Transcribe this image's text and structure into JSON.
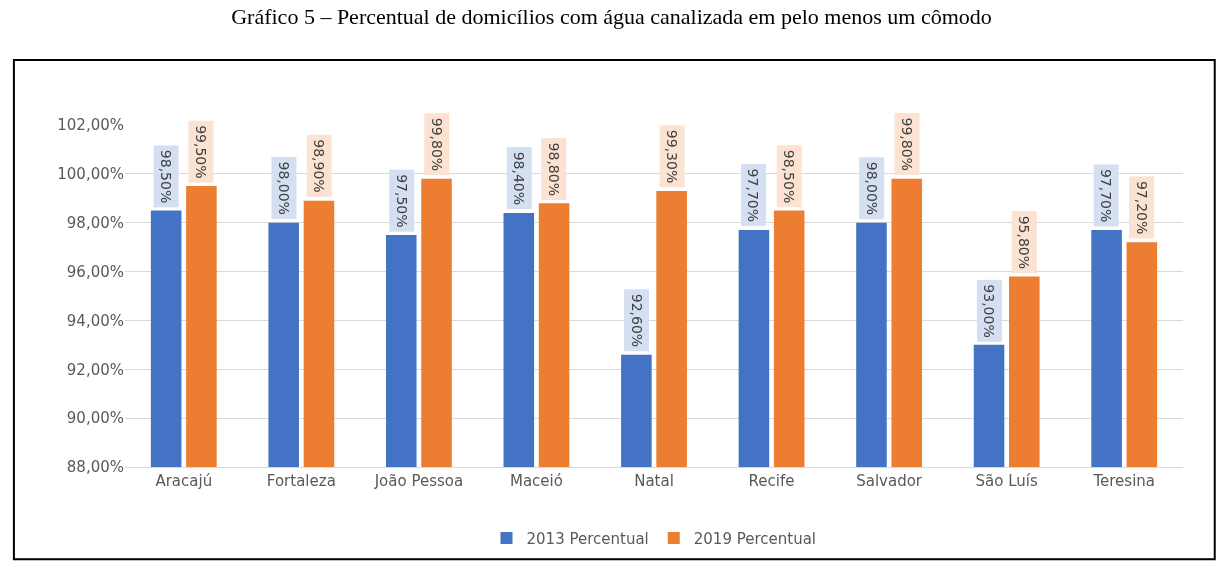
{
  "chart_data": {
    "type": "bar",
    "title": "Gráfico 5 – Percentual de domicílios com água canalizada em pelo menos um cômodo",
    "categories": [
      "Aracajú",
      "Fortaleza",
      "João Pessoa",
      "Maceió",
      "Natal",
      "Recife",
      "Salvador",
      "São Luís",
      "Teresina"
    ],
    "series": [
      {
        "name": "2013 Percentual",
        "color": "#4472c4",
        "values": [
          98.5,
          98.0,
          97.5,
          98.4,
          92.6,
          97.7,
          98.0,
          93.0,
          97.7
        ],
        "value_labels": [
          "98,50%",
          "98,00%",
          "97,50%",
          "98,40%",
          "92,60%",
          "97,70%",
          "98,00%",
          "93,00%",
          "97,70%"
        ]
      },
      {
        "name": "2019 Percentual",
        "color": "#ed7d31",
        "values": [
          99.5,
          98.9,
          99.8,
          98.8,
          99.3,
          98.5,
          99.8,
          95.8,
          97.2
        ],
        "value_labels": [
          "99,50%",
          "98,90%",
          "99,80%",
          "98,80%",
          "99,30%",
          "98,50%",
          "99,80%",
          "95,80%",
          "97,20%"
        ]
      }
    ],
    "ylim": [
      88,
      102
    ],
    "yticks": [
      {
        "value": 88,
        "label": "88,00%"
      },
      {
        "value": 90,
        "label": "90,00%"
      },
      {
        "value": 92,
        "label": "92,00%"
      },
      {
        "value": 94,
        "label": "94,00%"
      },
      {
        "value": 96,
        "label": "96,00%"
      },
      {
        "value": 98,
        "label": "98,00%"
      },
      {
        "value": 100,
        "label": "100,00%"
      },
      {
        "value": 102,
        "label": "102,00%"
      }
    ],
    "grid": "y",
    "legend": "bottom"
  }
}
